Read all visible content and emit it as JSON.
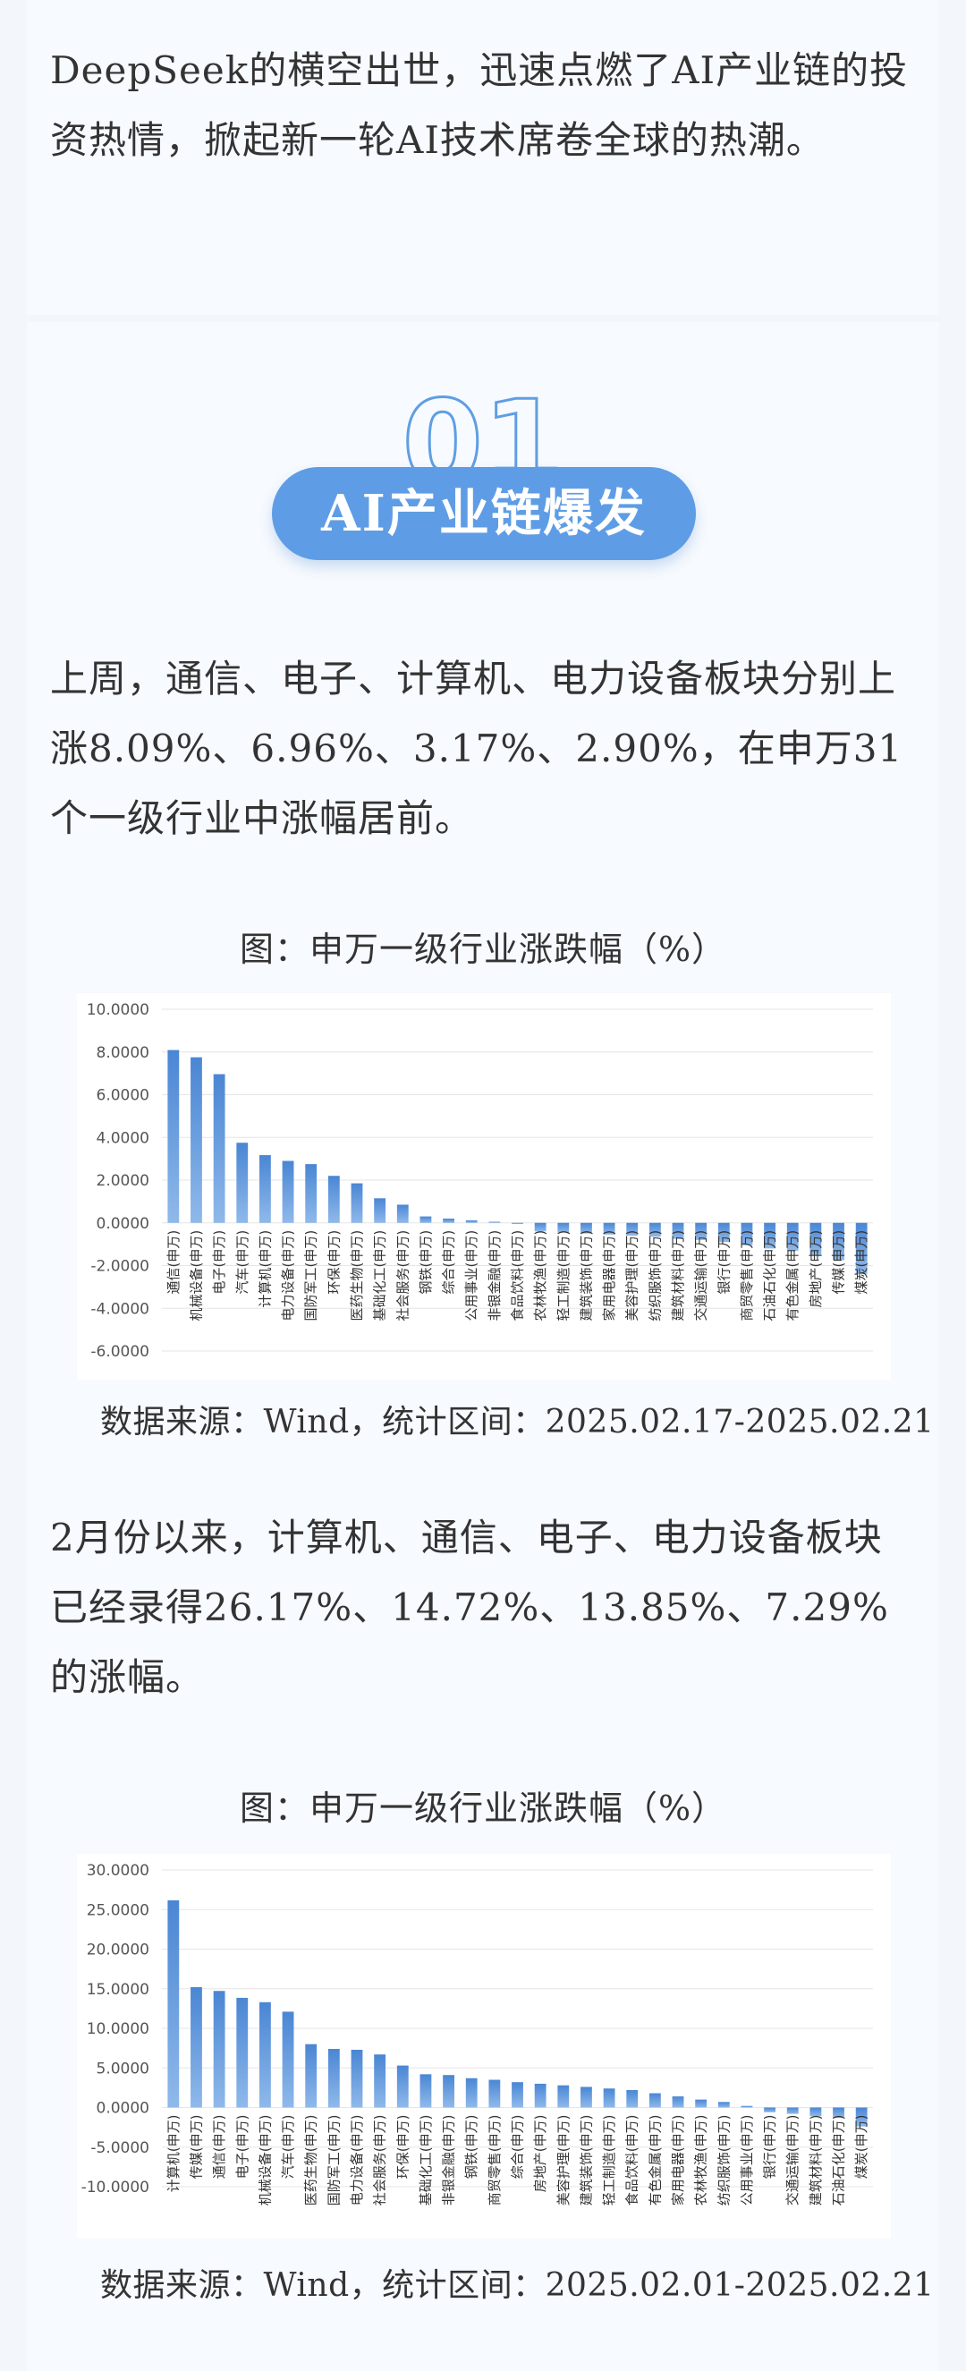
{
  "intro": {
    "text": "DeepSeek的横空出世，迅速点燃了AI产业链的投资热情，掀起新一轮AI技术席卷全球的热潮。"
  },
  "section": {
    "number": "01",
    "title": "AI产业链爆发"
  },
  "para1": "上周，通信、电子、计算机、电力设备板块分别上涨8.09%、6.96%、3.17%、2.90%，在申万31个一级行业中涨幅居前。",
  "para2": "2月份以来，计算机、通信、电子、电力设备板块已经录得26.17%、14.72%、13.85%、7.29%的涨幅。",
  "captions": {
    "chart1": "图：申万一级行业涨跌幅（%）",
    "chart2": "图：申万一级行业涨跌幅（%）"
  },
  "sources": {
    "chart1": "数据来源：Wind，统计区间：2025.02.17-2025.02.21",
    "chart2": "数据来源：Wind，统计区间：2025.02.01-2025.02.21"
  },
  "colors": {
    "bar_top": "#4a86d4",
    "bar_bottom": "#8fb9ea",
    "pill": "#5e9de5"
  },
  "chart_data": [
    {
      "type": "bar",
      "title": "图：申万一级行业涨跌幅（%）",
      "categories": [
        "通信(申万)",
        "机械设备(申万)",
        "电子(申万)",
        "汽车(申万)",
        "计算机(申万)",
        "电力设备(申万)",
        "国防军工(申万)",
        "环保(申万)",
        "医药生物(申万)",
        "基础化工(申万)",
        "社会服务(申万)",
        "钢铁(申万)",
        "综合(申万)",
        "公用事业(申万)",
        "非银金融(申万)",
        "食品饮料(申万)",
        "农林牧渔(申万)",
        "轻工制造(申万)",
        "建筑装饰(申万)",
        "家用电器(申万)",
        "美容护理(申万)",
        "纺织服饰(申万)",
        "建筑材料(申万)",
        "交通运输(申万)",
        "银行(申万)",
        "商贸零售(申万)",
        "石油石化(申万)",
        "有色金属(申万)",
        "房地产(申万)",
        "传媒(申万)",
        "煤炭(申万)"
      ],
      "values": [
        8.09,
        7.75,
        6.96,
        3.75,
        3.17,
        2.9,
        2.75,
        2.2,
        1.85,
        1.15,
        0.85,
        0.3,
        0.2,
        0.12,
        0.05,
        -0.05,
        -0.4,
        -0.45,
        -0.5,
        -0.55,
        -0.6,
        -0.65,
        -0.75,
        -0.8,
        -0.9,
        -1.05,
        -1.2,
        -1.3,
        -1.5,
        -1.75,
        -2.4
      ],
      "ylim": [
        -6,
        10
      ],
      "yticks": [
        "10.0000",
        "8.0000",
        "6.0000",
        "4.0000",
        "2.0000",
        "0.0000",
        "-2.0000",
        "-4.0000",
        "-6.0000"
      ],
      "grid": true
    },
    {
      "type": "bar",
      "title": "图：申万一级行业涨跌幅（%）",
      "categories": [
        "计算机(申万)",
        "传媒(申万)",
        "通信(申万)",
        "电子(申万)",
        "机械设备(申万)",
        "汽车(申万)",
        "医药生物(申万)",
        "国防军工(申万)",
        "电力设备(申万)",
        "社会服务(申万)",
        "环保(申万)",
        "基础化工(申万)",
        "非银金融(申万)",
        "钢铁(申万)",
        "商贸零售(申万)",
        "综合(申万)",
        "房地产(申万)",
        "美容护理(申万)",
        "建筑装饰(申万)",
        "轻工制造(申万)",
        "食品饮料(申万)",
        "有色金属(申万)",
        "家用电器(申万)",
        "农林牧渔(申万)",
        "纺织服饰(申万)",
        "公用事业(申万)",
        "银行(申万)",
        "交通运输(申万)",
        "建筑材料(申万)",
        "石油石化(申万)",
        "煤炭(申万)"
      ],
      "values": [
        26.17,
        15.2,
        14.72,
        13.85,
        13.3,
        12.1,
        8.0,
        7.4,
        7.29,
        6.7,
        5.3,
        4.2,
        4.1,
        3.7,
        3.5,
        3.2,
        3.0,
        2.8,
        2.6,
        2.4,
        2.2,
        1.8,
        1.4,
        1.0,
        0.7,
        0.2,
        -0.6,
        -0.8,
        -1.1,
        -1.3,
        -2.4
      ],
      "ylim": [
        -10,
        30
      ],
      "yticks": [
        "30.0000",
        "25.0000",
        "20.0000",
        "15.0000",
        "10.0000",
        "5.0000",
        "0.0000",
        "-5.0000",
        "-10.0000"
      ],
      "grid": true
    }
  ]
}
